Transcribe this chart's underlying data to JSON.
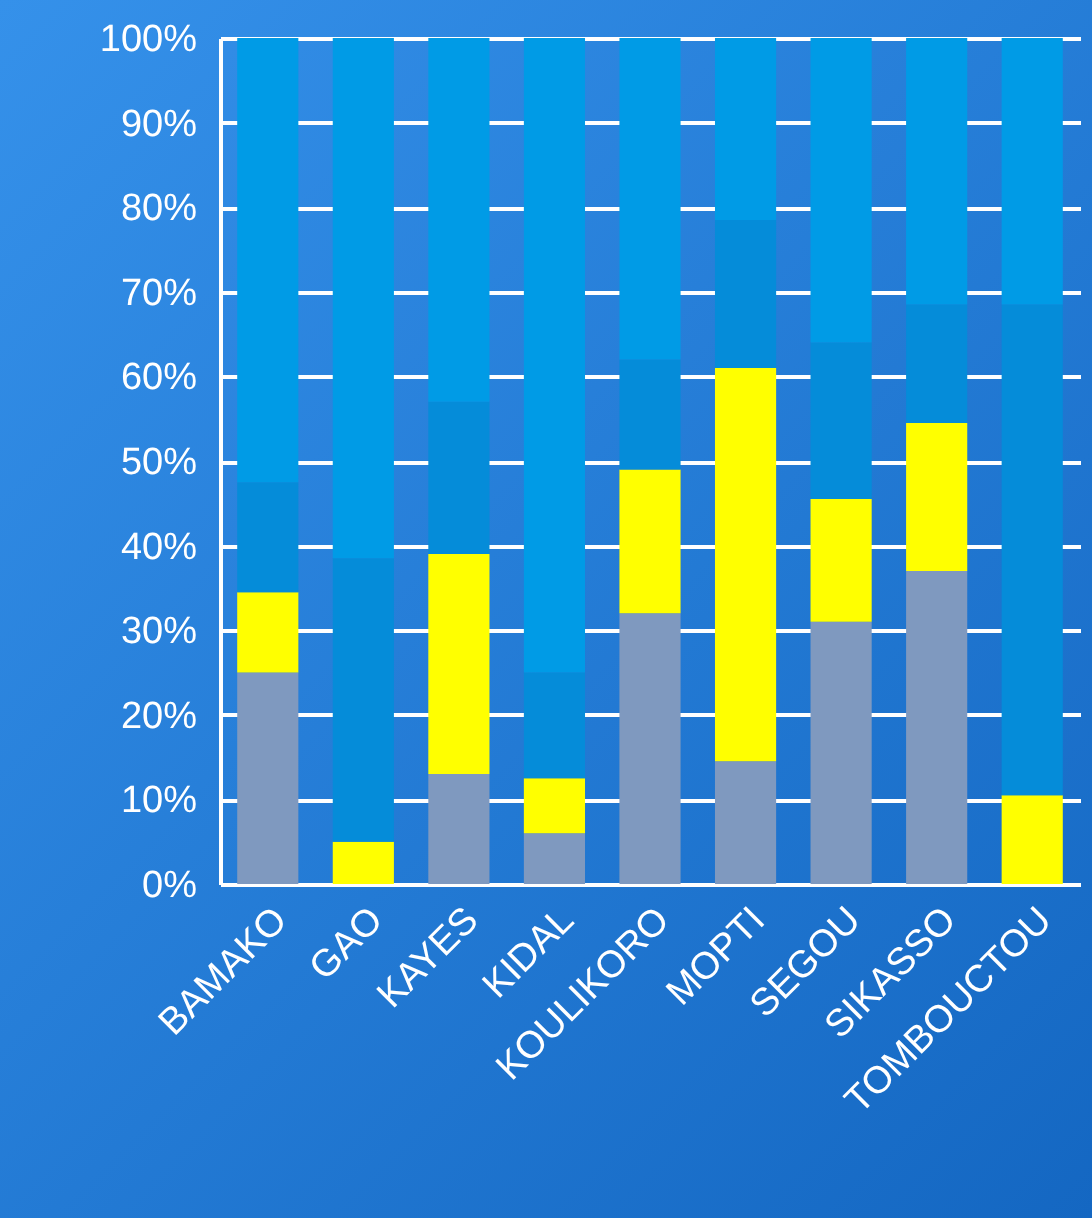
{
  "chart_data": {
    "type": "bar",
    "stacked": true,
    "categories": [
      "BAMAKO",
      "GAO",
      "KAYES",
      "KIDAL",
      "KOULIKORO",
      "MOPTI",
      "SEGOU",
      "SIKASSO",
      "TOMBOUCTOU"
    ],
    "series": [
      {
        "color": "#7f99bf",
        "values": [
          25,
          0,
          13,
          6,
          32,
          14.5,
          31,
          37,
          0
        ]
      },
      {
        "color": "#ffff00",
        "values": [
          9.5,
          5,
          26,
          6.5,
          17,
          46.5,
          14.5,
          17.5,
          10.5
        ]
      },
      {
        "color": "#058cd9",
        "values": [
          13,
          33.5,
          18,
          12.5,
          13,
          17.5,
          18.5,
          14,
          58
        ]
      },
      {
        "color": "#009be6",
        "values": [
          52.5,
          61.5,
          43,
          75,
          38,
          21.5,
          36,
          31.5,
          31.5
        ]
      }
    ],
    "ylim": [
      0,
      100
    ],
    "yticks": [
      {
        "value": 0,
        "label": "0%"
      },
      {
        "value": 10,
        "label": "10%"
      },
      {
        "value": 20,
        "label": "20%"
      },
      {
        "value": 30,
        "label": "30%"
      },
      {
        "value": 40,
        "label": "40%"
      },
      {
        "value": 50,
        "label": "50%"
      },
      {
        "value": 60,
        "label": "60%"
      },
      {
        "value": 70,
        "label": "70%"
      },
      {
        "value": 80,
        "label": "80%"
      },
      {
        "value": 90,
        "label": "90%"
      },
      {
        "value": 100,
        "label": "100%"
      }
    ],
    "grid": "y",
    "legend": false
  }
}
